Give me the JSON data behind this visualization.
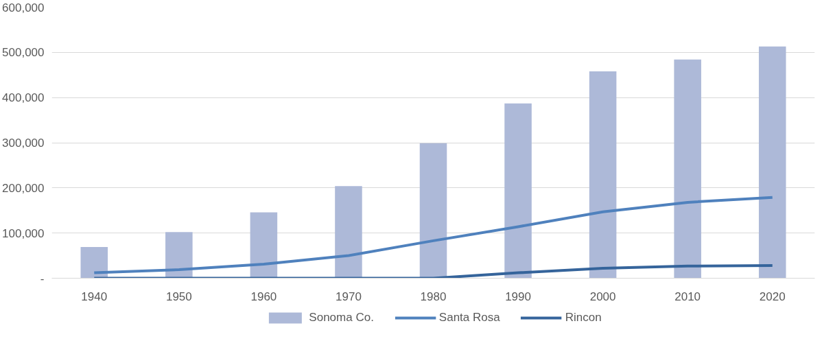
{
  "chart_data": {
    "type": "bar",
    "categories": [
      "1940",
      "1950",
      "1960",
      "1970",
      "1980",
      "1990",
      "2000",
      "2010",
      "2020"
    ],
    "series": [
      {
        "name": "Sonoma Co.",
        "color": "#adb9d8",
        "values": [
          69000,
          102000,
          146000,
          204000,
          299000,
          387000,
          458000,
          484000,
          513000
        ]
      },
      {
        "name": "Santa Rosa",
        "type": "line",
        "color": "#4f81bd",
        "values": [
          12000,
          19000,
          31000,
          50000,
          83000,
          114000,
          147000,
          168000,
          179000
        ]
      },
      {
        "name": "Rincon",
        "type": "line",
        "color": "#35649b",
        "values": [
          0,
          0,
          0,
          0,
          0,
          12000,
          22000,
          27000,
          28000
        ]
      }
    ],
    "ylim": [
      0,
      600000
    ],
    "yticks": [
      {
        "value": 0,
        "label": "-"
      },
      {
        "value": 100000,
        "label": "100,000"
      },
      {
        "value": 200000,
        "label": "200,000"
      },
      {
        "value": 300000,
        "label": "300,000"
      },
      {
        "value": 400000,
        "label": "400,000"
      },
      {
        "value": 500000,
        "label": "500,000"
      },
      {
        "value": 600000,
        "label": "600,000"
      }
    ],
    "grid": "y",
    "legend": "bottom",
    "line_style": "solid",
    "marker": "none"
  }
}
